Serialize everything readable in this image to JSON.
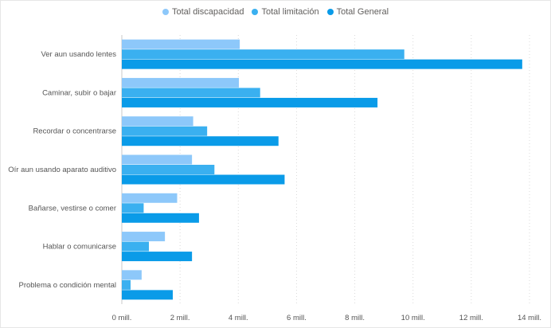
{
  "chart_data": {
    "type": "bar",
    "orientation": "horizontal",
    "categories": [
      "Ver aun usando lentes",
      "Caminar, subir o bajar",
      "Recordar o concentrarse",
      "Oír aun usando aparato auditivo",
      "Bañarse, vestirse o comer",
      "Hablar o comunicarse",
      "Problema o condición mental"
    ],
    "series": [
      {
        "name": "Total discapacidad",
        "color": "#8dc8fa",
        "values": [
          4.05,
          4.02,
          2.45,
          2.41,
          1.9,
          1.48,
          0.68
        ]
      },
      {
        "name": "Total limitación",
        "color": "#3ab0f0",
        "values": [
          9.7,
          4.75,
          2.93,
          3.18,
          0.75,
          0.93,
          0.3
        ]
      },
      {
        "name": "Total General",
        "color": "#0a9be8",
        "values": [
          13.75,
          8.78,
          5.38,
          5.59,
          2.65,
          2.41,
          1.75
        ]
      }
    ],
    "xlim": [
      0,
      14
    ],
    "x_ticks": [
      0,
      2,
      4,
      6,
      8,
      10,
      12,
      14
    ],
    "x_tick_labels": [
      "0 mill.",
      "2 mill.",
      "4 mill.",
      "6 mill.",
      "8 mill.",
      "10 mill.",
      "12 mill.",
      "14 mill."
    ],
    "legend_position": "top-center",
    "grid": true
  }
}
